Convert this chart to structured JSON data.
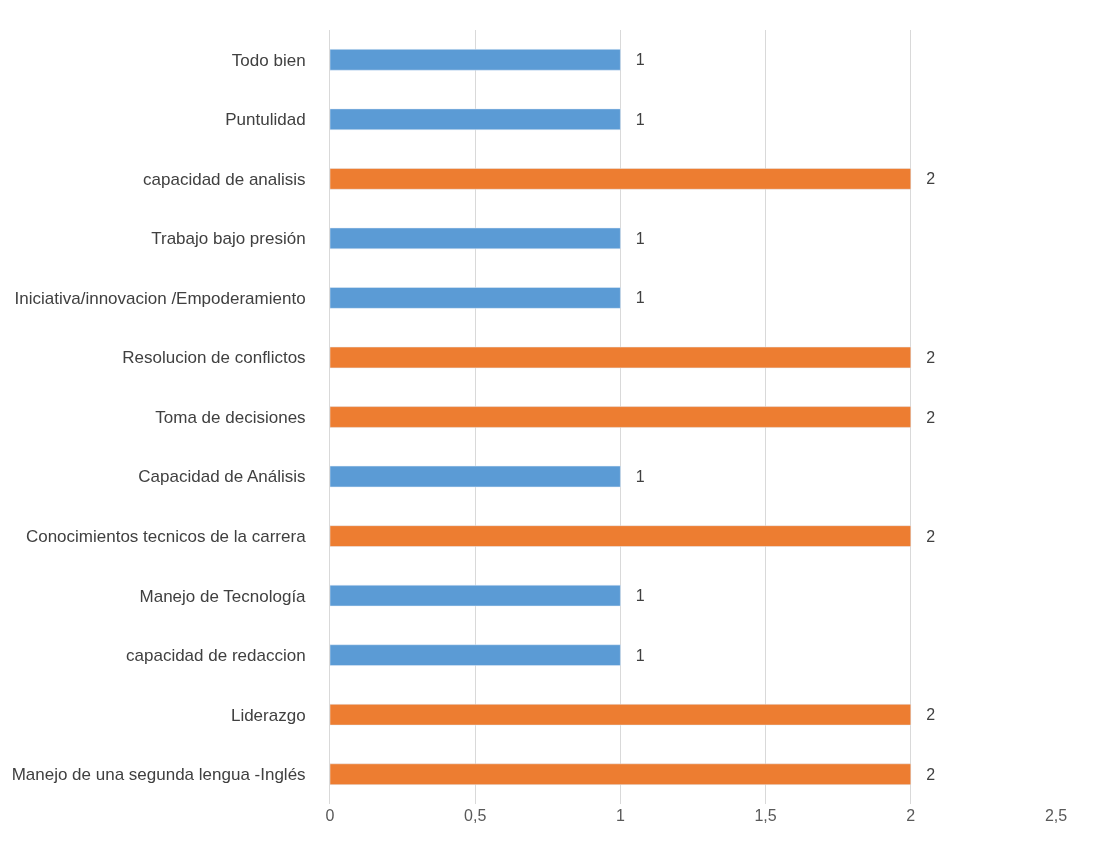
{
  "chart_data": {
    "type": "bar",
    "orientation": "horizontal",
    "categories": [
      "Todo bien",
      "Puntulidad",
      "capacidad de analisis",
      "Trabajo bajo presión",
      "Iniciativa/innovacion /Empoderamiento",
      "Resolucion de conflictos",
      "Toma de decisiones",
      "Capacidad de Análisis",
      "Conocimientos tecnicos de la carrera",
      "Manejo de Tecnología",
      "capacidad de redaccion",
      "Liderazgo",
      "Manejo de una segunda lengua -Inglés"
    ],
    "values": [
      1,
      1,
      2,
      1,
      1,
      2,
      2,
      1,
      2,
      1,
      1,
      2,
      2
    ],
    "colors": [
      "#5b9bd5",
      "#5b9bd5",
      "#ed7d31",
      "#5b9bd5",
      "#5b9bd5",
      "#ed7d31",
      "#ed7d31",
      "#5b9bd5",
      "#ed7d31",
      "#5b9bd5",
      "#5b9bd5",
      "#ed7d31",
      "#ed7d31"
    ],
    "xlim": [
      0,
      2.5
    ],
    "xticks": [
      0,
      {
        "value": 0.5,
        "label": "0,5"
      },
      1,
      {
        "value": 1.5,
        "label": "1,5"
      },
      2,
      {
        "value": 2.5,
        "label": "2,5"
      }
    ],
    "grid": "x",
    "data_labels": true
  }
}
